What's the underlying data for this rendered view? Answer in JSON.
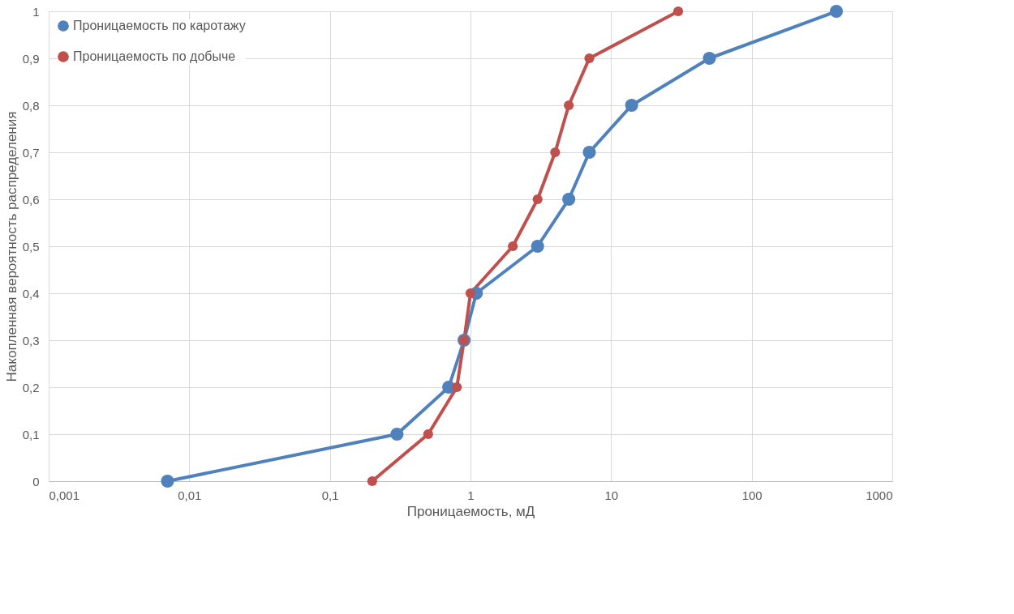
{
  "chart_data": {
    "type": "line",
    "xlabel": "Проницаемость, мД",
    "ylabel": "Накопленная вероятность распределения",
    "log": "x",
    "grid": true,
    "legend": "top left",
    "marker": "circle",
    "line_style": "solid",
    "xlim": [
      0.001,
      1000
    ],
    "xticks": [
      {
        "value": 0.001,
        "label": "0,001"
      },
      {
        "value": 0.01,
        "label": "0,01"
      },
      {
        "value": 0.1,
        "label": "0,1"
      },
      1,
      10,
      100,
      1000
    ],
    "ylim": [
      0,
      1
    ],
    "yticks": [
      0,
      {
        "value": 0.1,
        "label": "0,1"
      },
      {
        "value": 0.2,
        "label": "0,2"
      },
      {
        "value": 0.3,
        "label": "0,3"
      },
      {
        "value": 0.4,
        "label": "0,4"
      },
      {
        "value": 0.5,
        "label": "0,5"
      },
      {
        "value": 0.6,
        "label": "0,6"
      },
      {
        "value": 0.7,
        "label": "0,7"
      },
      {
        "value": 0.8,
        "label": "0,8"
      },
      {
        "value": 0.9,
        "label": "0,9"
      },
      1
    ],
    "series": [
      {
        "name": "Проницаемость по каротажу",
        "color": "#4f81bd",
        "x": [
          0.007,
          0.3,
          0.7,
          0.9,
          1.1,
          3,
          5,
          7,
          14,
          50,
          400
        ],
        "values": [
          0,
          0.1,
          0.2,
          0.3,
          0.4,
          0.5,
          0.6,
          0.7,
          0.8,
          0.9,
          1
        ]
      },
      {
        "name": "Проницаемость по добыче",
        "color": "#c0504d",
        "x": [
          0.2,
          0.5,
          0.8,
          0.9,
          1,
          2,
          3,
          4,
          5,
          7,
          30
        ],
        "values": [
          0,
          0.1,
          0.2,
          0.3,
          0.4,
          0.5,
          0.6,
          0.7,
          0.8,
          0.9,
          1
        ]
      }
    ]
  }
}
